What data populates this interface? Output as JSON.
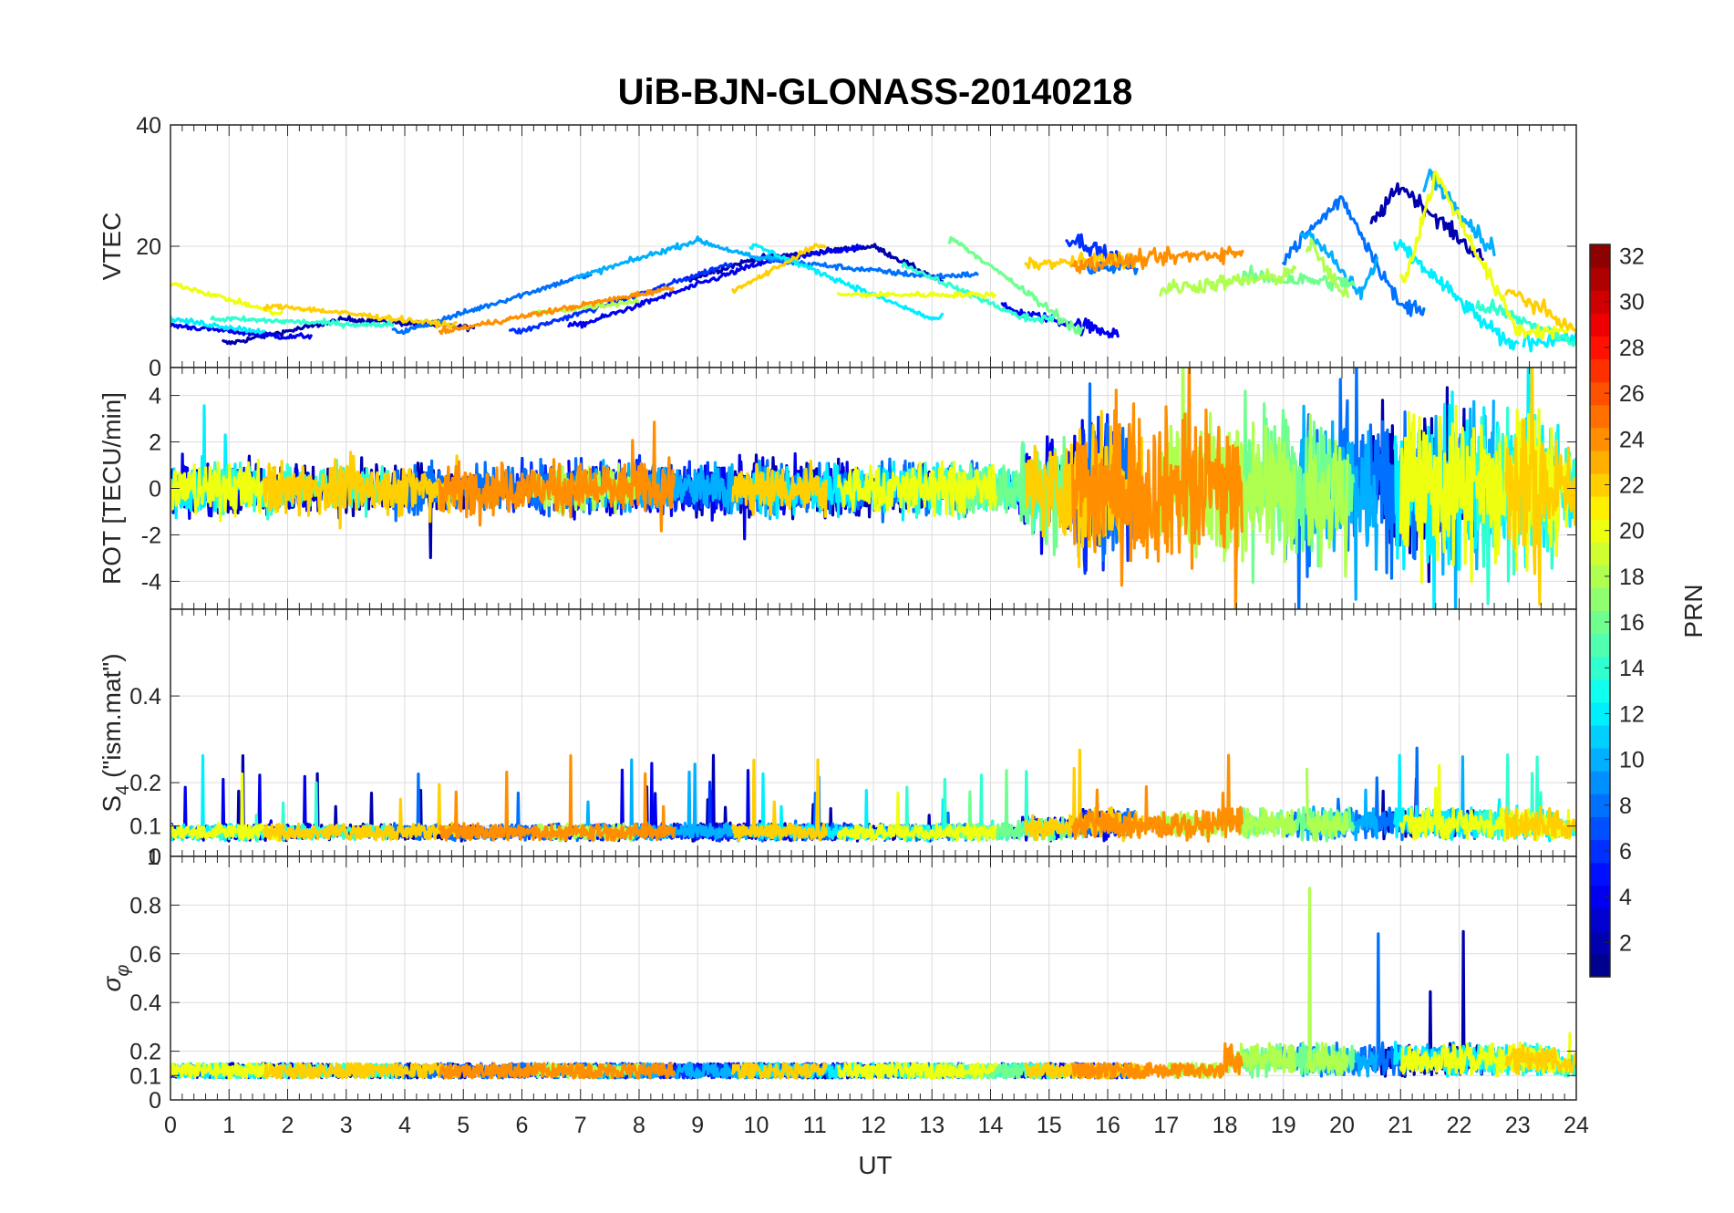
{
  "chart_data": {
    "type": "line",
    "title": "UiB-BJN-GLONASS-20140218",
    "xlabel": "UT",
    "x_range": [
      0,
      24
    ],
    "x_ticks": [
      "0",
      "1",
      "2",
      "3",
      "4",
      "5",
      "6",
      "7",
      "8",
      "9",
      "10",
      "11",
      "12",
      "13",
      "14",
      "15",
      "16",
      "17",
      "18",
      "19",
      "20",
      "21",
      "22",
      "23",
      "24"
    ],
    "grid": true,
    "panels": [
      {
        "id": "vtec",
        "ylabel": "VTEC",
        "ylim": [
          0,
          40
        ],
        "y_ticks": [
          {
            "v": 0,
            "t": "0"
          },
          {
            "v": 20,
            "t": "20"
          },
          {
            "v": 40,
            "t": "40"
          }
        ]
      },
      {
        "id": "rot",
        "ylabel": "ROT [TECU/min]",
        "ylim": [
          -5.2,
          5.2
        ],
        "y_ticks": [
          {
            "v": -4,
            "t": "-4"
          },
          {
            "v": -2,
            "t": "-2"
          },
          {
            "v": 0,
            "t": "0"
          },
          {
            "v": 2,
            "t": "2"
          },
          {
            "v": 4,
            "t": "4"
          }
        ]
      },
      {
        "id": "s4",
        "ylabel": "S4 (\"ism.mat\")",
        "ylabel_main": "S",
        "ylabel_sub": "4",
        "ylabel_rest": " (\"ism.mat\")",
        "ylim": [
          0.03,
          0.6
        ],
        "y_ticks": [
          {
            "v": 0.1,
            "t": "0.1"
          },
          {
            "v": 0.2,
            "t": "0.2"
          },
          {
            "v": 0.4,
            "t": "0.4"
          }
        ]
      },
      {
        "id": "sigma",
        "ylabel": "σφ",
        "ylabel_main": "σ",
        "ylabel_sub": "φ",
        "ylim": [
          0,
          1
        ],
        "y_ticks": [
          {
            "v": 0,
            "t": "0"
          },
          {
            "v": 0.1,
            "t": "0.1"
          },
          {
            "v": 0.2,
            "t": "0.2"
          },
          {
            "v": 0.4,
            "t": "0.4"
          },
          {
            "v": 0.6,
            "t": "0.6"
          },
          {
            "v": 0.8,
            "t": "0.8"
          },
          {
            "v": 1,
            "t": "1"
          }
        ]
      }
    ],
    "overlap_label": "0",
    "colorbar": {
      "label": "PRN",
      "range": [
        1,
        32
      ],
      "ticks": [
        "2",
        "4",
        "6",
        "8",
        "10",
        "12",
        "14",
        "16",
        "18",
        "20",
        "22",
        "24",
        "26",
        "28",
        "30",
        "32"
      ],
      "colormap": "jet"
    },
    "series": [
      {
        "prn": 2,
        "windows": [
          [
            0.9,
            5.2
          ],
          [
            8.8,
            13.2
          ],
          [
            20.5,
            22.4
          ]
        ],
        "vtec_profile": [
          [
            0,
            6
          ],
          [
            1,
            4
          ],
          [
            3,
            8
          ],
          [
            6,
            6
          ],
          [
            10,
            18
          ],
          [
            12,
            20
          ],
          [
            15,
            5
          ],
          [
            16,
            7
          ],
          [
            20,
            17
          ],
          [
            21,
            30
          ],
          [
            24,
            4
          ]
        ]
      },
      {
        "prn": 4,
        "windows": [
          [
            0.0,
            2.4
          ],
          [
            6.8,
            11.8
          ],
          [
            14.2,
            16.2
          ]
        ],
        "vtec_profile": [
          [
            0,
            7
          ],
          [
            2,
            5
          ],
          [
            5,
            7
          ],
          [
            7,
            7
          ],
          [
            10,
            17
          ],
          [
            11.8,
            20
          ],
          [
            14.5,
            9
          ],
          [
            16,
            6
          ]
        ]
      },
      {
        "prn": 6,
        "windows": [
          [
            5.8,
            9.6
          ],
          [
            15.3,
            16.4
          ]
        ],
        "vtec_profile": [
          [
            6,
            6
          ],
          [
            8,
            12
          ],
          [
            9.5,
            17
          ],
          [
            15.5,
            21
          ],
          [
            16.3,
            17
          ]
        ]
      },
      {
        "prn": 8,
        "windows": [
          [
            3.8,
            7.2
          ],
          [
            10.0,
            13.8
          ],
          [
            15.6,
            16.5
          ],
          [
            19.0,
            21.4
          ]
        ],
        "vtec_profile": [
          [
            4,
            6
          ],
          [
            7,
            15
          ],
          [
            10,
            18
          ],
          [
            13,
            15
          ],
          [
            19,
            18
          ],
          [
            20,
            28
          ],
          [
            21,
            10
          ]
        ]
      },
      {
        "prn": 10,
        "windows": [
          [
            6.9,
            10.4
          ],
          [
            19.3,
            20.6
          ],
          [
            21.4,
            22.6
          ]
        ],
        "vtec_profile": [
          [
            7,
            15
          ],
          [
            9,
            21
          ],
          [
            10,
            18
          ],
          [
            19.5,
            22
          ],
          [
            20.3,
            12
          ],
          [
            21.5,
            32
          ],
          [
            22.5,
            20
          ]
        ]
      },
      {
        "prn": 12,
        "windows": [
          [
            0.0,
            1.6
          ],
          [
            9.9,
            13.2
          ],
          [
            20.9,
            23.0
          ],
          [
            23.1,
            24.0
          ]
        ],
        "vtec_profile": [
          [
            0,
            8
          ],
          [
            1.5,
            6
          ],
          [
            10,
            20
          ],
          [
            13,
            8
          ],
          [
            21,
            20
          ],
          [
            22.8,
            4
          ],
          [
            24,
            5
          ]
        ]
      },
      {
        "prn": 14,
        "windows": [
          [
            0.7,
            3.8
          ],
          [
            12.5,
            15.1
          ],
          [
            22.3,
            24.0
          ]
        ],
        "vtec_profile": [
          [
            1,
            8
          ],
          [
            3.5,
            7
          ],
          [
            12.5,
            17
          ],
          [
            14.6,
            8
          ],
          [
            22.5,
            10
          ],
          [
            24,
            4
          ]
        ]
      },
      {
        "prn": 16,
        "windows": [
          [
            13.3,
            15.6
          ],
          [
            18.3,
            20.2
          ]
        ],
        "vtec_profile": [
          [
            13.4,
            21
          ],
          [
            15.5,
            6
          ],
          [
            18.4,
            15
          ],
          [
            20,
            14
          ]
        ]
      },
      {
        "prn": 18,
        "windows": [
          [
            6.2,
            8.0
          ],
          [
            16.9,
            19.2
          ],
          [
            19.4,
            20.1
          ]
        ],
        "vtec_profile": [
          [
            6.3,
            9
          ],
          [
            8,
            11
          ],
          [
            17,
            13
          ],
          [
            19,
            15
          ],
          [
            19.5,
            20
          ],
          [
            20,
            12
          ]
        ]
      },
      {
        "prn": 20,
        "windows": [
          [
            0.0,
            1.9
          ],
          [
            11.4,
            14.1
          ],
          [
            21.0,
            23.9
          ]
        ],
        "vtec_profile": [
          [
            0,
            14
          ],
          [
            1.8,
            9
          ],
          [
            11.5,
            12
          ],
          [
            14,
            12
          ],
          [
            21.1,
            15
          ],
          [
            21.6,
            32
          ],
          [
            23,
            6
          ]
        ]
      },
      {
        "prn": 22,
        "windows": [
          [
            1.6,
            4.9
          ],
          [
            9.6,
            11.2
          ],
          [
            14.6,
            16.6
          ],
          [
            22.8,
            24.0
          ]
        ],
        "vtec_profile": [
          [
            2,
            10
          ],
          [
            4.8,
            7
          ],
          [
            9.7,
            13
          ],
          [
            11,
            20
          ],
          [
            14.7,
            17
          ],
          [
            16.5,
            18
          ],
          [
            23,
            12
          ],
          [
            24,
            6
          ]
        ]
      },
      {
        "prn": 24,
        "windows": [
          [
            4.6,
            8.6
          ],
          [
            15.4,
            18.3
          ]
        ],
        "vtec_profile": [
          [
            4.7,
            6
          ],
          [
            8.5,
            13
          ],
          [
            15.5,
            17
          ],
          [
            18.2,
            19
          ]
        ]
      }
    ]
  }
}
